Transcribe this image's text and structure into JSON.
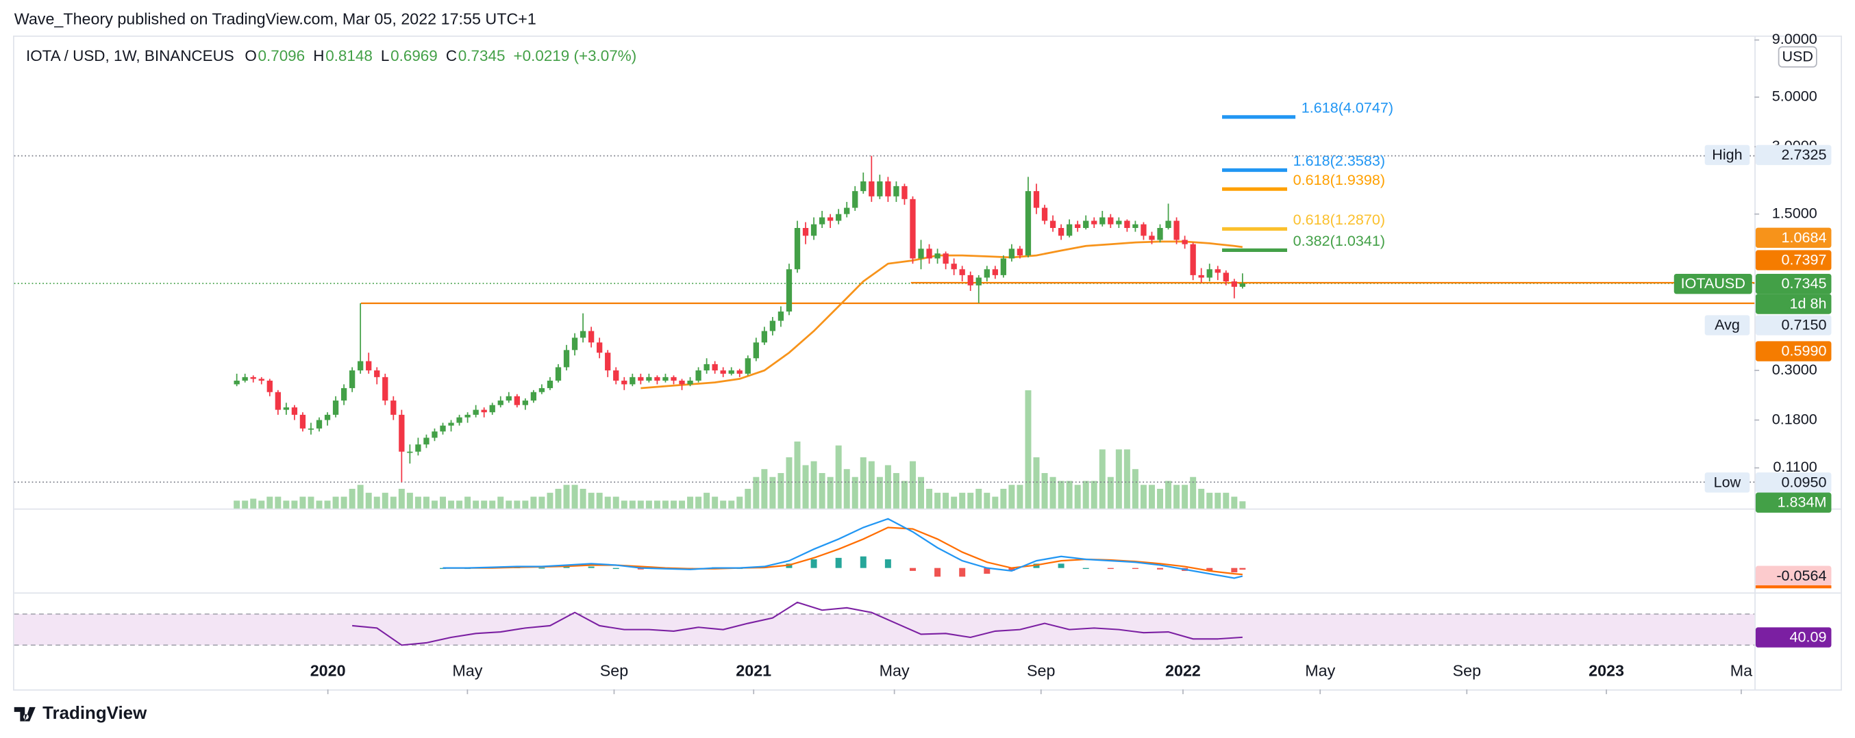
{
  "header": {
    "publisher": "Wave_Theory published on TradingView.com, Mar 05, 2022 17:55 UTC+1"
  },
  "chart_data": {
    "type": "candlestick",
    "title": "IOTA / USD, 1W, BINANCEUS",
    "ohlc_names": [
      "O",
      "H",
      "L",
      "C"
    ],
    "change": "+0.0219 (+3.07%)",
    "currency": "USD",
    "symbol": "IOTAUSD",
    "countdown": "1d 8h",
    "up_color": "#43a047",
    "down_color": "#f23645",
    "log_scale": true,
    "grid": false,
    "candles": [
      [
        0.26,
        0.29,
        0.255,
        0.27
      ],
      [
        0.27,
        0.29,
        0.265,
        0.28
      ],
      [
        0.28,
        0.285,
        0.265,
        0.275
      ],
      [
        0.275,
        0.28,
        0.26,
        0.27
      ],
      [
        0.27,
        0.275,
        0.23,
        0.24
      ],
      [
        0.24,
        0.245,
        0.19,
        0.2
      ],
      [
        0.2,
        0.215,
        0.19,
        0.205
      ],
      [
        0.205,
        0.21,
        0.18,
        0.19
      ],
      [
        0.19,
        0.195,
        0.16,
        0.165
      ],
      [
        0.165,
        0.175,
        0.155,
        0.165
      ],
      [
        0.165,
        0.185,
        0.16,
        0.18
      ],
      [
        0.18,
        0.195,
        0.17,
        0.19
      ],
      [
        0.19,
        0.23,
        0.185,
        0.22
      ],
      [
        0.22,
        0.26,
        0.21,
        0.25
      ],
      [
        0.25,
        0.31,
        0.24,
        0.3
      ],
      [
        0.3,
        0.599,
        0.29,
        0.33
      ],
      [
        0.33,
        0.36,
        0.29,
        0.3
      ],
      [
        0.3,
        0.31,
        0.26,
        0.28
      ],
      [
        0.28,
        0.29,
        0.21,
        0.22
      ],
      [
        0.22,
        0.23,
        0.18,
        0.19
      ],
      [
        0.19,
        0.2,
        0.095,
        0.13
      ],
      [
        0.13,
        0.14,
        0.115,
        0.13
      ],
      [
        0.13,
        0.15,
        0.125,
        0.14
      ],
      [
        0.14,
        0.155,
        0.135,
        0.15
      ],
      [
        0.15,
        0.165,
        0.145,
        0.16
      ],
      [
        0.16,
        0.175,
        0.155,
        0.17
      ],
      [
        0.17,
        0.18,
        0.16,
        0.175
      ],
      [
        0.175,
        0.19,
        0.17,
        0.185
      ],
      [
        0.185,
        0.195,
        0.175,
        0.19
      ],
      [
        0.19,
        0.21,
        0.185,
        0.2
      ],
      [
        0.2,
        0.205,
        0.185,
        0.195
      ],
      [
        0.195,
        0.215,
        0.19,
        0.21
      ],
      [
        0.21,
        0.23,
        0.205,
        0.22
      ],
      [
        0.22,
        0.24,
        0.215,
        0.23
      ],
      [
        0.23,
        0.235,
        0.205,
        0.21
      ],
      [
        0.21,
        0.225,
        0.2,
        0.22
      ],
      [
        0.22,
        0.245,
        0.215,
        0.24
      ],
      [
        0.24,
        0.26,
        0.235,
        0.25
      ],
      [
        0.25,
        0.28,
        0.245,
        0.27
      ],
      [
        0.27,
        0.32,
        0.265,
        0.31
      ],
      [
        0.31,
        0.39,
        0.3,
        0.37
      ],
      [
        0.37,
        0.44,
        0.35,
        0.42
      ],
      [
        0.42,
        0.54,
        0.4,
        0.45
      ],
      [
        0.45,
        0.47,
        0.38,
        0.4
      ],
      [
        0.4,
        0.42,
        0.34,
        0.36
      ],
      [
        0.36,
        0.37,
        0.28,
        0.3
      ],
      [
        0.3,
        0.31,
        0.26,
        0.27
      ],
      [
        0.27,
        0.28,
        0.245,
        0.26
      ],
      [
        0.26,
        0.29,
        0.255,
        0.28
      ],
      [
        0.28,
        0.29,
        0.26,
        0.27
      ],
      [
        0.27,
        0.29,
        0.265,
        0.28
      ],
      [
        0.28,
        0.285,
        0.26,
        0.27
      ],
      [
        0.27,
        0.29,
        0.265,
        0.28
      ],
      [
        0.28,
        0.285,
        0.26,
        0.27
      ],
      [
        0.27,
        0.275,
        0.245,
        0.26
      ],
      [
        0.26,
        0.28,
        0.255,
        0.27
      ],
      [
        0.27,
        0.31,
        0.265,
        0.3
      ],
      [
        0.3,
        0.34,
        0.29,
        0.32
      ],
      [
        0.32,
        0.33,
        0.29,
        0.3
      ],
      [
        0.3,
        0.31,
        0.28,
        0.29
      ],
      [
        0.29,
        0.31,
        0.285,
        0.3
      ],
      [
        0.3,
        0.305,
        0.28,
        0.29
      ],
      [
        0.29,
        0.35,
        0.285,
        0.34
      ],
      [
        0.34,
        0.42,
        0.33,
        0.4
      ],
      [
        0.4,
        0.47,
        0.39,
        0.45
      ],
      [
        0.45,
        0.52,
        0.43,
        0.5
      ],
      [
        0.5,
        0.58,
        0.47,
        0.55
      ],
      [
        0.55,
        0.9,
        0.53,
        0.85
      ],
      [
        0.85,
        1.4,
        0.82,
        1.3
      ],
      [
        1.3,
        1.38,
        1.1,
        1.2
      ],
      [
        1.2,
        1.45,
        1.15,
        1.35
      ],
      [
        1.35,
        1.55,
        1.3,
        1.45
      ],
      [
        1.45,
        1.5,
        1.3,
        1.4
      ],
      [
        1.4,
        1.58,
        1.35,
        1.5
      ],
      [
        1.5,
        1.7,
        1.45,
        1.6
      ],
      [
        1.6,
        2.0,
        1.55,
        1.9
      ],
      [
        1.9,
        2.3,
        1.85,
        2.1
      ],
      [
        2.1,
        2.7325,
        1.7,
        1.8
      ],
      [
        1.8,
        2.25,
        1.75,
        2.1
      ],
      [
        2.1,
        2.2,
        1.7,
        1.8
      ],
      [
        1.8,
        2.1,
        1.7,
        2.0
      ],
      [
        2.0,
        2.05,
        1.65,
        1.75
      ],
      [
        1.75,
        1.8,
        0.9,
        0.95
      ],
      [
        0.95,
        1.15,
        0.85,
        1.05
      ],
      [
        1.05,
        1.1,
        0.9,
        0.95
      ],
      [
        0.95,
        1.05,
        0.9,
        1.0
      ],
      [
        1.0,
        1.02,
        0.85,
        0.9
      ],
      [
        0.9,
        0.95,
        0.8,
        0.85
      ],
      [
        0.85,
        0.88,
        0.75,
        0.8
      ],
      [
        0.8,
        0.83,
        0.68,
        0.72
      ],
      [
        0.72,
        0.8,
        0.6,
        0.78
      ],
      [
        0.78,
        0.88,
        0.75,
        0.85
      ],
      [
        0.85,
        0.88,
        0.77,
        0.8
      ],
      [
        0.8,
        0.98,
        0.78,
        0.95
      ],
      [
        0.95,
        1.1,
        0.92,
        1.05
      ],
      [
        1.05,
        1.08,
        0.95,
        0.98
      ],
      [
        0.98,
        2.2,
        0.96,
        1.9
      ],
      [
        1.9,
        2.05,
        1.5,
        1.6
      ],
      [
        1.6,
        1.65,
        1.35,
        1.4
      ],
      [
        1.4,
        1.48,
        1.25,
        1.3
      ],
      [
        1.3,
        1.35,
        1.15,
        1.2
      ],
      [
        1.2,
        1.42,
        1.18,
        1.35
      ],
      [
        1.35,
        1.4,
        1.25,
        1.3
      ],
      [
        1.3,
        1.48,
        1.28,
        1.4
      ],
      [
        1.4,
        1.45,
        1.3,
        1.35
      ],
      [
        1.35,
        1.55,
        1.32,
        1.45
      ],
      [
        1.45,
        1.5,
        1.3,
        1.35
      ],
      [
        1.35,
        1.45,
        1.3,
        1.4
      ],
      [
        1.4,
        1.42,
        1.25,
        1.3
      ],
      [
        1.3,
        1.4,
        1.25,
        1.35
      ],
      [
        1.35,
        1.38,
        1.15,
        1.2
      ],
      [
        1.2,
        1.25,
        1.1,
        1.15
      ],
      [
        1.15,
        1.35,
        1.12,
        1.3
      ],
      [
        1.3,
        1.67,
        1.28,
        1.4
      ],
      [
        1.4,
        1.45,
        1.1,
        1.15
      ],
      [
        1.15,
        1.2,
        1.05,
        1.1
      ],
      [
        1.1,
        1.12,
        0.76,
        0.8
      ],
      [
        0.8,
        0.86,
        0.74,
        0.78
      ],
      [
        0.78,
        0.9,
        0.75,
        0.85
      ],
      [
        0.85,
        0.88,
        0.76,
        0.82
      ],
      [
        0.82,
        0.84,
        0.72,
        0.75
      ],
      [
        0.75,
        0.77,
        0.63,
        0.7096
      ],
      [
        0.7096,
        0.8148,
        0.6969,
        0.7345
      ]
    ],
    "xlim": [
      -27,
      184.1
    ],
    "xticks": [
      {
        "value": 11.05,
        "label": "2020"
      },
      {
        "value": 27.98,
        "label": "May"
      },
      {
        "value": 45.77,
        "label": "Sep"
      },
      {
        "value": 62.7,
        "label": "2021"
      },
      {
        "value": 79.77,
        "label": "May"
      },
      {
        "value": 97.56,
        "label": "Sep"
      },
      {
        "value": 114.78,
        "label": "2022"
      },
      {
        "value": 131.42,
        "label": "May"
      },
      {
        "value": 149.21,
        "label": "Sep"
      },
      {
        "value": 166.14,
        "label": "2023"
      },
      {
        "value": 182.5,
        "label": "Ma"
      }
    ],
    "ylim": [
      0.0724,
      9.42
    ],
    "yticks": [
      {
        "value": 9,
        "label": "9.0000"
      },
      {
        "value": 5,
        "label": "5.0000"
      },
      {
        "value": 3,
        "label": "3.0000"
      },
      {
        "value": 1.5,
        "label": "1.5000"
      },
      {
        "value": 0.3,
        "label": "0.3000"
      },
      {
        "value": 0.18,
        "label": "0.1800"
      },
      {
        "value": 0.11,
        "label": "0.1100"
      }
    ],
    "high": {
      "label": "High",
      "value": 2.7325
    },
    "low": {
      "label": "Low",
      "value": 0.095,
      "value_label": "0.0950"
    },
    "avg": {
      "label": "Avg",
      "value": 0.715,
      "value_label": "0.7150"
    },
    "ma": {
      "color": "#f7931a",
      "x": [
        49,
        52,
        55,
        58,
        61,
        64,
        67,
        70,
        73,
        76,
        79,
        82,
        85,
        88,
        91,
        94,
        97,
        100,
        103,
        106,
        109,
        112,
        115,
        118,
        121,
        122
      ],
      "values": [
        0.25,
        0.255,
        0.26,
        0.265,
        0.275,
        0.3,
        0.36,
        0.45,
        0.58,
        0.75,
        0.9,
        0.93,
        0.98,
        0.98,
        0.97,
        0.96,
        0.98,
        1.03,
        1.08,
        1.1,
        1.12,
        1.13,
        1.13,
        1.11,
        1.08,
        1.0684
      ]
    },
    "levels": [
      {
        "value": 0.7397,
        "color": "#f57c00"
      },
      {
        "value": 0.599,
        "value_label": "0.5990",
        "color": "#f57c00"
      }
    ],
    "fibs": [
      {
        "label": "1.618(4.0747)",
        "value": 4.0747,
        "color": "#2196f3"
      },
      {
        "label": "1.618(2.3583)",
        "value": 2.3583,
        "color": "#2196f3"
      },
      {
        "label": "0.618(1.9398)",
        "value": 1.9398,
        "color": "#ffa000"
      },
      {
        "label": "0.618(1.2870)",
        "value": 1.287,
        "color": "#fbc02d"
      },
      {
        "label": "0.382(1.0341)",
        "value": 1.0341,
        "color": "#43a047"
      }
    ],
    "volume": {
      "color": "#a5d6a7",
      "ylim": [
        0,
        30000000.0
      ],
      "last_label": "1.834M",
      "values": [
        2000000.0,
        2000000.0,
        2500000.0,
        2000000.0,
        3000000.0,
        3000000.0,
        2000000.0,
        2000000.0,
        3000000.0,
        3000000.0,
        2000000.0,
        2000000.0,
        3000000.0,
        3000000.0,
        5000000.0,
        6000000.0,
        4000000.0,
        3000000.0,
        4000000.0,
        3000000.0,
        5000000.0,
        4000000.0,
        3000000.0,
        3000000.0,
        2000000.0,
        3000000.0,
        2000000.0,
        2000000.0,
        3000000.0,
        2000000.0,
        2000000.0,
        2000000.0,
        3000000.0,
        2000000.0,
        2000000.0,
        2000000.0,
        3000000.0,
        3000000.0,
        4000000.0,
        5000000.0,
        6000000.0,
        6000000.0,
        5000000.0,
        4000000.0,
        4000000.0,
        3000000.0,
        3000000.0,
        2000000.0,
        2000000.0,
        2000000.0,
        2000000.0,
        2000000.0,
        2000000.0,
        2000000.0,
        2000000.0,
        3000000.0,
        3000000.0,
        4000000.0,
        3000000.0,
        2000000.0,
        2000000.0,
        3000000.0,
        5000000.0,
        8000000.0,
        10000000.0,
        8000000.0,
        9000000.0,
        13000000.0,
        17000000.0,
        11000000.0,
        12000000.0,
        9000000.0,
        8000000.0,
        16000000.0,
        10000000.0,
        8000000.0,
        13000000.0,
        12000000.0,
        8000000.0,
        11000000.0,
        9000000.0,
        7000000.0,
        12000000.0,
        8000000.0,
        5000000.0,
        4000000.0,
        4000000.0,
        3000000.0,
        4000000.0,
        4000000.0,
        5000000.0,
        4000000.0,
        3000000.0,
        5000000.0,
        6000000.0,
        6000000.0,
        30000000.0,
        13000000.0,
        9000000.0,
        8000000.0,
        7000000.0,
        7000000.0,
        6000000.0,
        7000000.0,
        7000000.0,
        15000000.0,
        8000000.0,
        15000000.0,
        15000000.0,
        10000000.0,
        6000000.0,
        6000000.0,
        5000000.0,
        7000000.0,
        6000000.0,
        6000000.0,
        8000000.0,
        5000000.0,
        4000000.0,
        4000000.0,
        4000000.0,
        3000000.0,
        1834000.0
      ]
    },
    "macd": {
      "macd_color": "#2196f3",
      "signal_color": "#ff6d00",
      "pos_color": "#26a69a",
      "neg_color": "#ef5350",
      "ylim": [
        -0.161,
        0.403
      ],
      "x": [
        25,
        28,
        31,
        34,
        37,
        40,
        43,
        46,
        49,
        52,
        55,
        58,
        61,
        64,
        67,
        70,
        73,
        76,
        79,
        82,
        85,
        88,
        91,
        94,
        97,
        100,
        103,
        106,
        109,
        112,
        115,
        118,
        121,
        122
      ],
      "macd": [
        0,
        0,
        0.005,
        0.01,
        0.01,
        0.02,
        0.03,
        0.02,
        0,
        -0.005,
        -0.01,
        0,
        0,
        0.01,
        0.05,
        0.13,
        0.2,
        0.28,
        0.34,
        0.25,
        0.14,
        0.05,
        0,
        -0.02,
        0.05,
        0.08,
        0.06,
        0.05,
        0.04,
        0.02,
        -0.01,
        -0.04,
        -0.07,
        -0.0564
      ],
      "signal": [
        0,
        0,
        0,
        0.005,
        0.008,
        0.012,
        0.02,
        0.02,
        0.01,
        0,
        -0.005,
        -0.005,
        0,
        0.003,
        0.02,
        0.07,
        0.13,
        0.2,
        0.28,
        0.27,
        0.2,
        0.11,
        0.04,
        0,
        0.02,
        0.05,
        0.06,
        0.055,
        0.045,
        0.03,
        0.01,
        -0.02,
        -0.04,
        -0.045
      ],
      "histogram": [
        0,
        0,
        0.005,
        0.005,
        0.002,
        0.008,
        0.01,
        0,
        -0.01,
        -0.005,
        -0.005,
        0.005,
        0,
        0.007,
        0.03,
        0.06,
        0.07,
        0.08,
        0.06,
        -0.02,
        -0.06,
        -0.06,
        -0.04,
        -0.02,
        0.03,
        0.03,
        0,
        -0.005,
        -0.005,
        -0.01,
        -0.02,
        -0.02,
        -0.03,
        -0.0114
      ]
    },
    "rsi": {
      "color": "#7b1fa2",
      "ylim": [
        -26.9,
        96.2
      ],
      "band": [
        30,
        70
      ],
      "x": [
        14,
        17,
        20,
        23,
        26,
        29,
        32,
        35,
        38,
        41,
        44,
        47,
        50,
        53,
        56,
        59,
        62,
        65,
        68,
        71,
        74,
        77,
        80,
        83,
        86,
        89,
        92,
        95,
        98,
        101,
        104,
        107,
        110,
        113,
        116,
        119,
        122
      ],
      "values": [
        55,
        52,
        30,
        33,
        40,
        45,
        47,
        52,
        55,
        72,
        55,
        50,
        50,
        48,
        53,
        50,
        58,
        65,
        85,
        75,
        78,
        72,
        58,
        44,
        45,
        40,
        48,
        50,
        58,
        50,
        52,
        50,
        46,
        47,
        38,
        38,
        40.09
      ]
    }
  },
  "footer": {
    "brand": "TradingView"
  }
}
